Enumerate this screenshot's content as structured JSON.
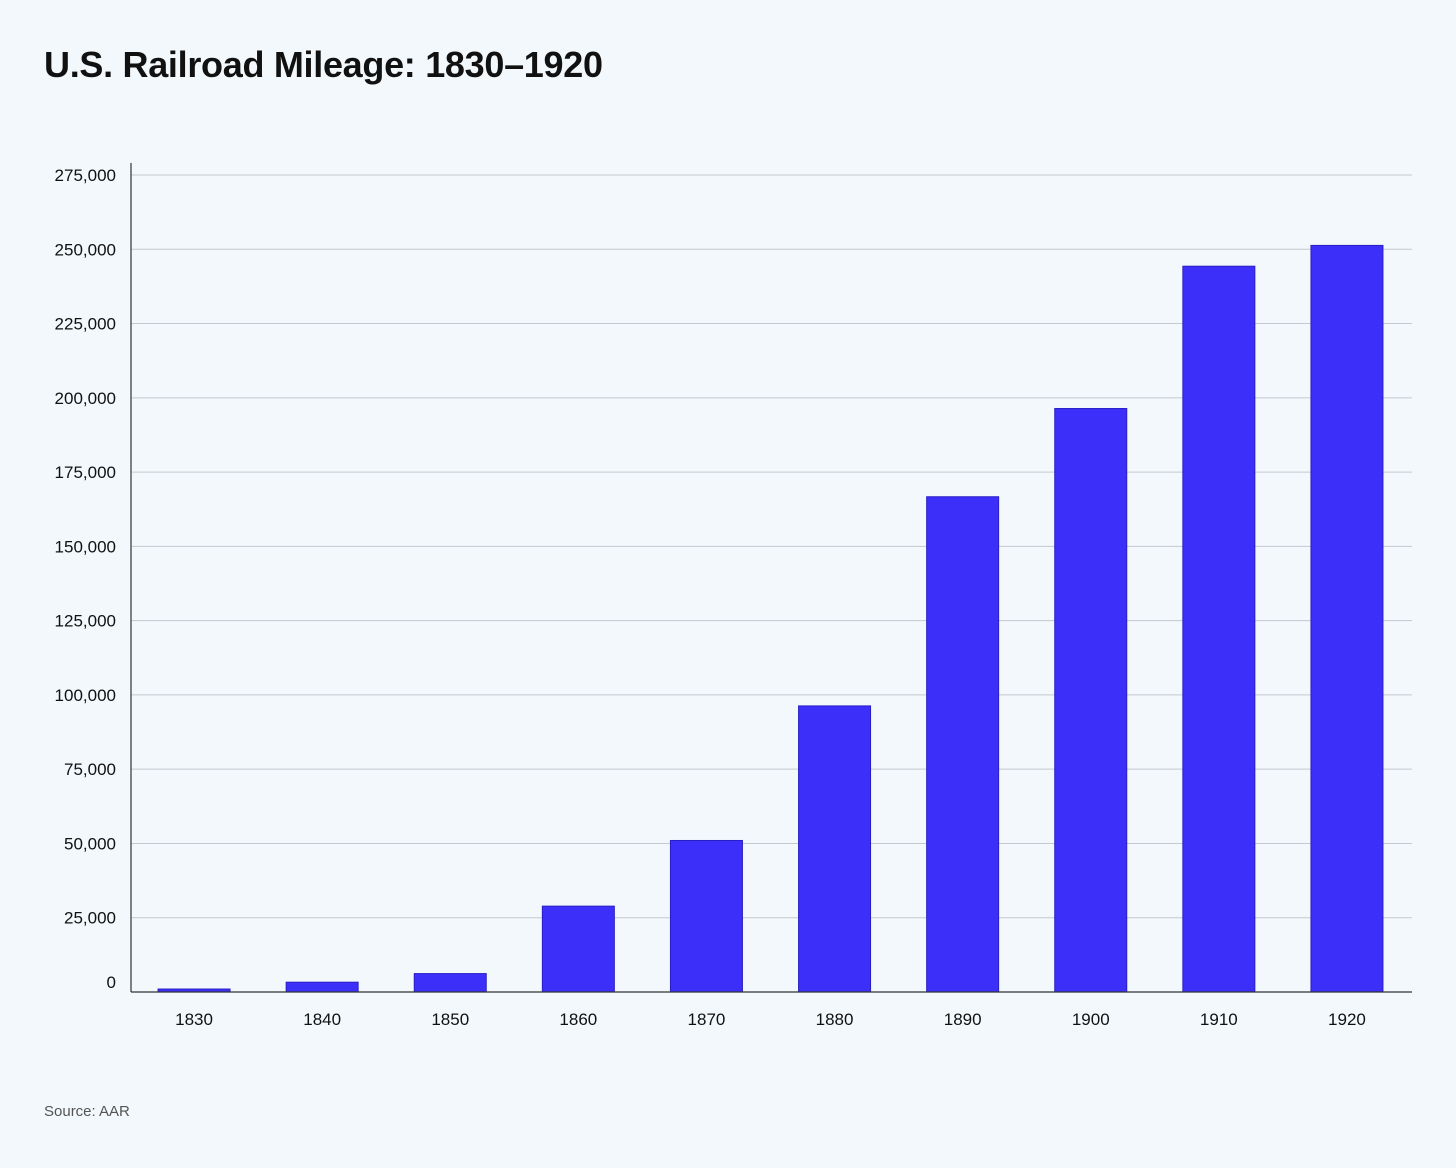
{
  "chart_data": {
    "type": "bar",
    "title": "U.S. Railroad Mileage: 1830–1920",
    "xlabel": "",
    "ylabel": "",
    "categories": [
      "1830",
      "1840",
      "1850",
      "1860",
      "1870",
      "1880",
      "1890",
      "1900",
      "1910",
      "1920"
    ],
    "values": [
      1000,
      3300,
      6200,
      28900,
      51000,
      96300,
      166700,
      196400,
      244300,
      251300
    ],
    "ylim": [
      0,
      275000
    ],
    "yticks": [
      0,
      25000,
      50000,
      75000,
      100000,
      125000,
      150000,
      175000,
      200000,
      225000,
      250000,
      275000
    ],
    "ytick_labels": [
      "0",
      "25,000",
      "50,000",
      "75,000",
      "100,000",
      "125,000",
      "150,000",
      "175,000",
      "200,000",
      "225,000",
      "250,000",
      "275,000"
    ],
    "grid": true,
    "legend": "none",
    "bar_color": "#3d2ffa",
    "bar_edge_color": "#2a1fc4",
    "grid_color": "#c4c9cf",
    "axis_color": "#333333",
    "background_color": "#f2f8fb"
  },
  "footer": {
    "source": "Source: AAR"
  }
}
